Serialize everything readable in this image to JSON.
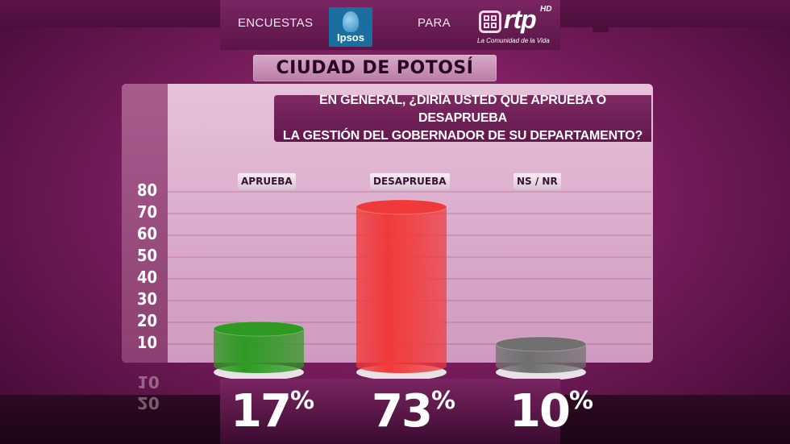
{
  "header": {
    "encuestas": "ENCUESTAS",
    "para": "PARA",
    "ipsos": "Ipsos",
    "rtp": "rtp",
    "hd": "HD",
    "tagline": "La Comunidad de la Vida"
  },
  "city": "CIUDAD DE POTOSÍ",
  "question_line1": "EN GENERAL, ¿DIRÍA USTED QUE APRUEBA O DESAPRUEBA",
  "question_line2": "LA GESTIÓN DEL GOBERNADOR DE SU DEPARTAMENTO?",
  "colors": {
    "aprueba": "#2e9a22",
    "desaprueba": "#f03a3a",
    "nsnr": "#707070"
  },
  "reflect_ticks": [
    "10",
    "20"
  ],
  "chart_data": {
    "type": "bar",
    "categories": [
      "APRUEBA",
      "DESAPRUEBA",
      "NS / NR"
    ],
    "values": [
      17,
      73,
      10
    ],
    "value_labels": [
      "17",
      "73",
      "10"
    ],
    "value_suffix": "%",
    "yticks": [
      "80",
      "70",
      "60",
      "50",
      "40",
      "30",
      "20",
      "10"
    ],
    "ylim": [
      0,
      80
    ],
    "grid": true
  }
}
